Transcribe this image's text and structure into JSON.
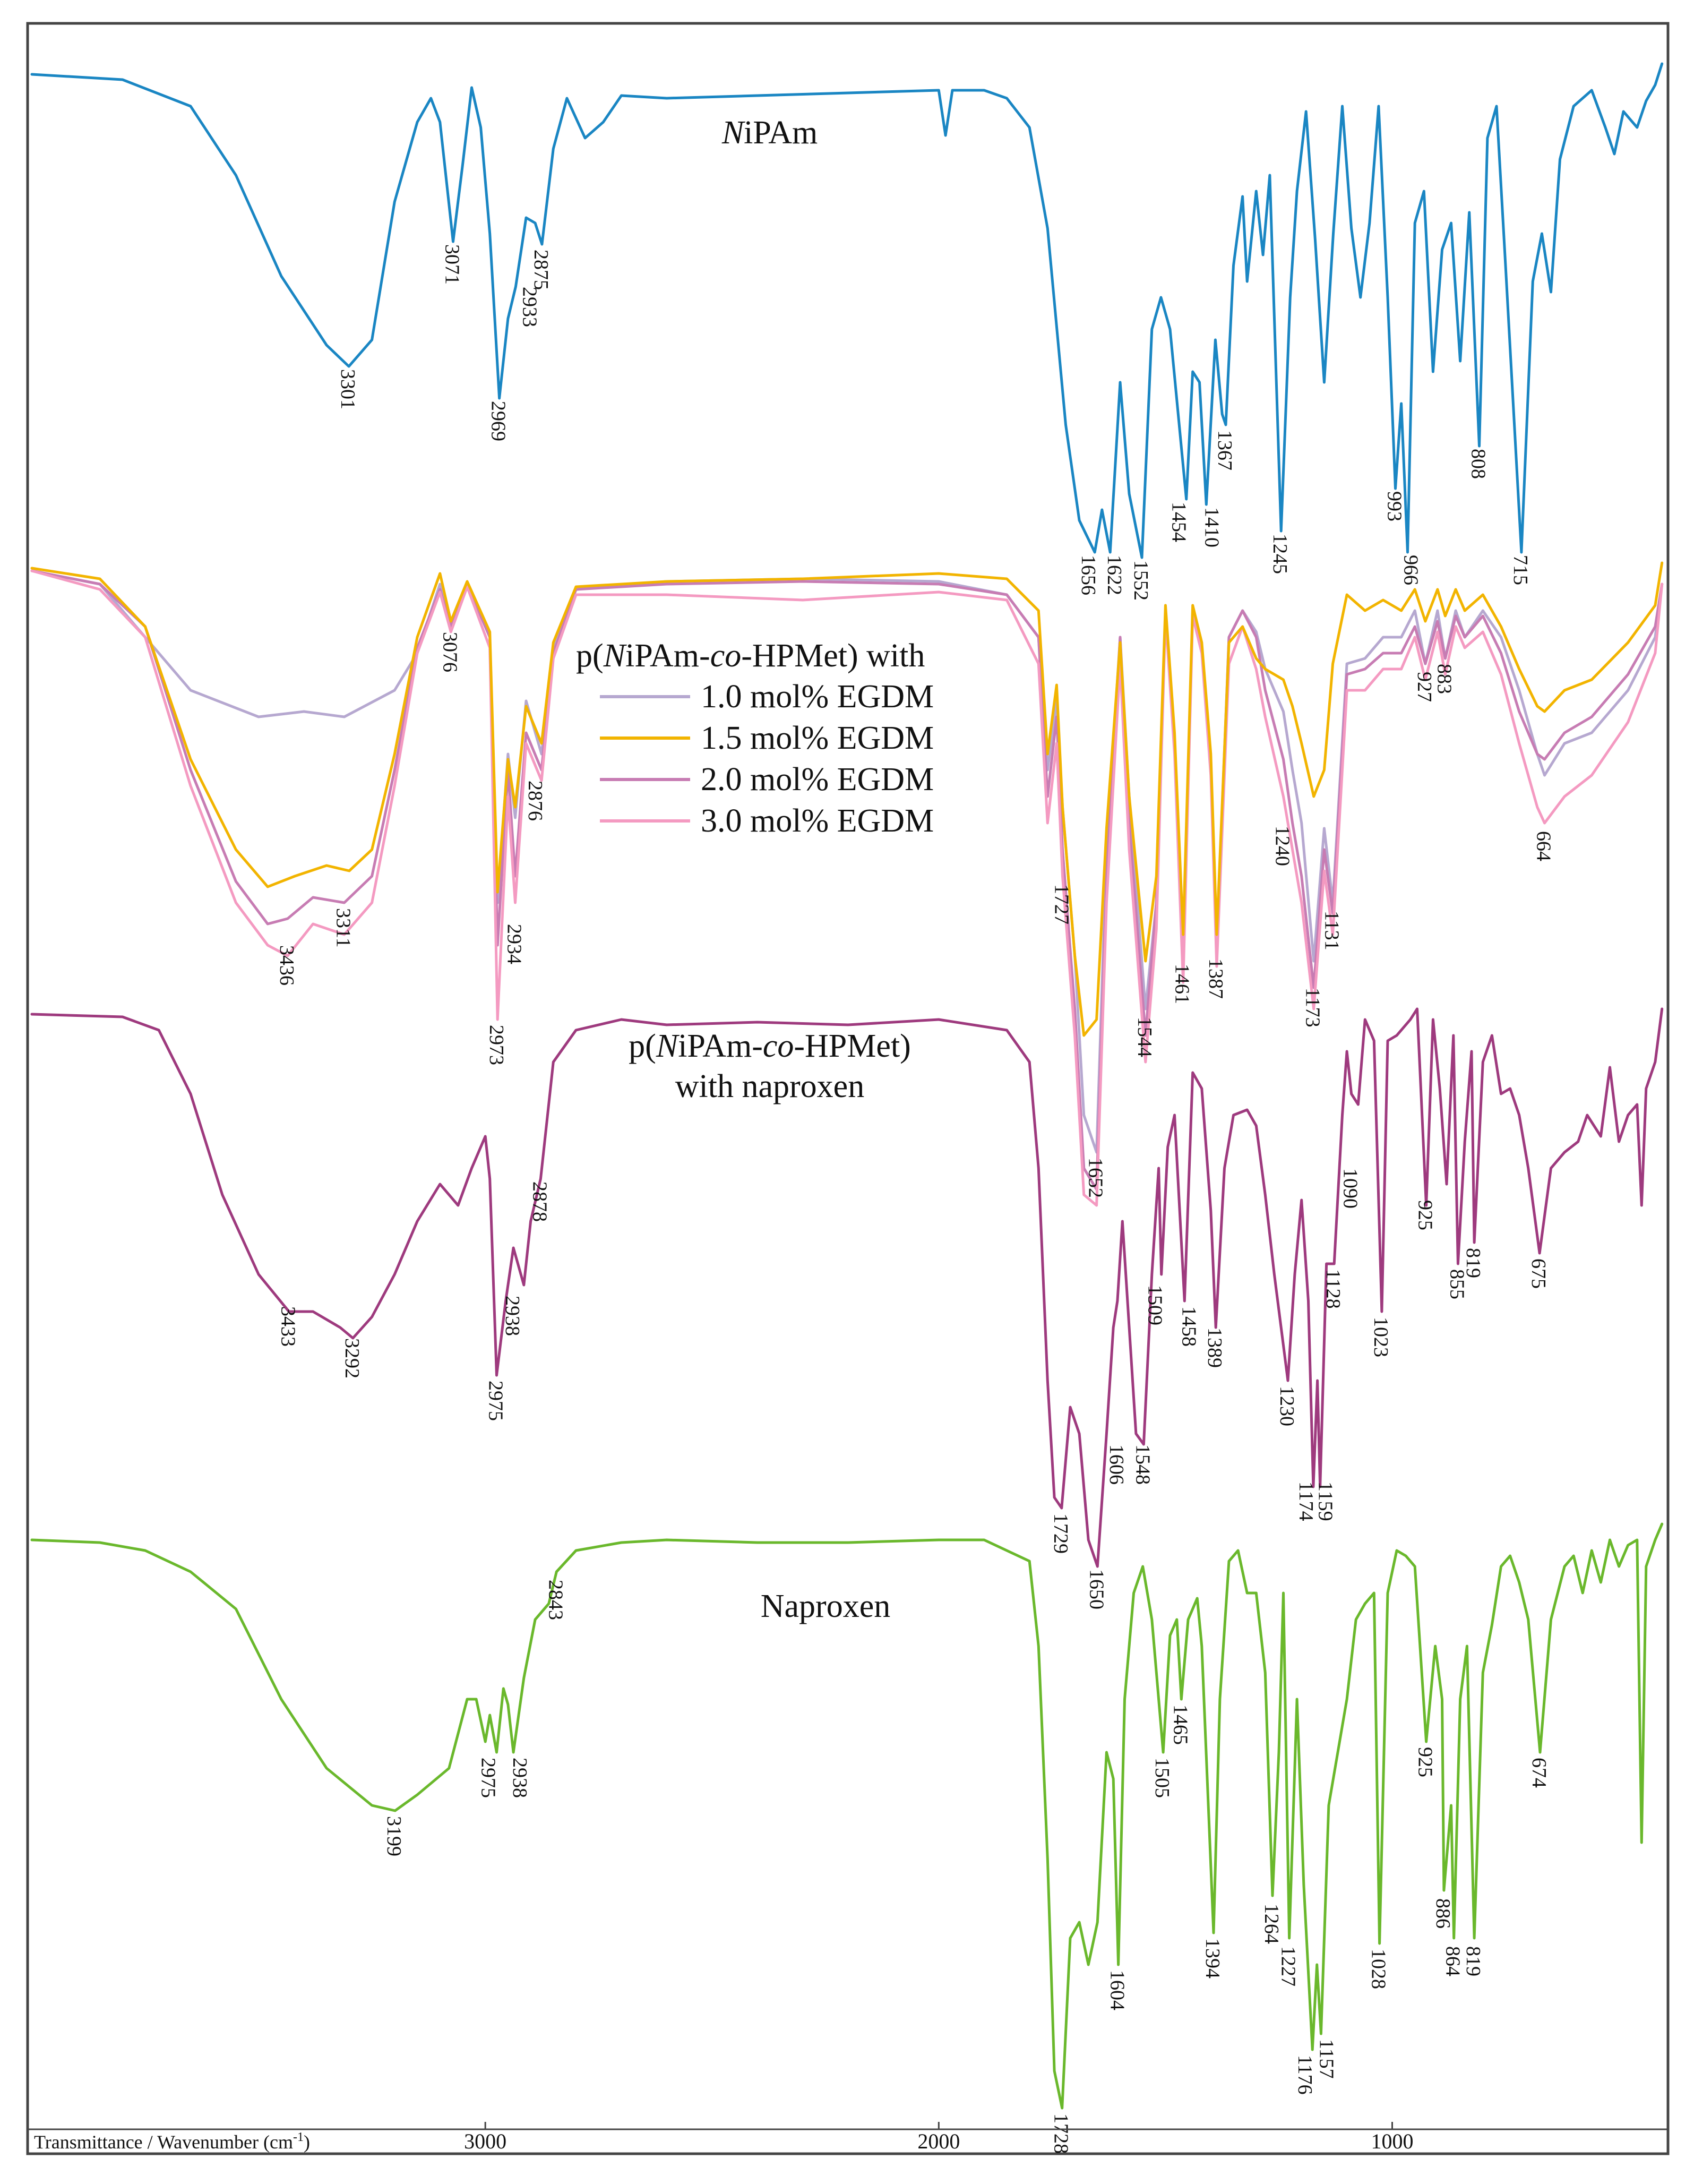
{
  "chart_data": {
    "type": "line",
    "title": "",
    "xlabel": "Transmittance / Wavenumber (cm",
    "xlabel_sup": "-1",
    "ylabel": "",
    "xlim": [
      4000,
      400
    ],
    "x_ticks": [
      3000,
      2000,
      1000
    ],
    "x_tick_labels": [
      "3000",
      "2000",
      "1000"
    ],
    "grid": false,
    "panels": [
      {
        "name": "NiPAm",
        "label_parts": [
          {
            "text": "N",
            "italic": true
          },
          {
            "text": "iPAm",
            "italic": false
          }
        ],
        "color": "#1a86c3",
        "peaks": [
          "3301",
          "3071",
          "2969",
          "2933",
          "2875",
          "1656",
          "1622",
          "1552",
          "1454",
          "1410",
          "1367",
          "1245",
          "993",
          "966",
          "808",
          "715"
        ]
      },
      {
        "name": "p(NiPAm-co-HPMet) with EGDM",
        "label_parts": [
          {
            "text": "p(",
            "italic": false
          },
          {
            "text": "N",
            "italic": true
          },
          {
            "text": "iPAm-",
            "italic": false
          },
          {
            "text": "co",
            "italic": true
          },
          {
            "text": "-HPMet) with",
            "italic": false
          }
        ],
        "legend": [
          {
            "label": "1.0 mol% EGDM",
            "color": "#b6a8d0"
          },
          {
            "label": "1.5 mol% EGDM",
            "color": "#f2b400"
          },
          {
            "label": "2.0 mol% EGDM",
            "color": "#c77cb3"
          },
          {
            "label": "3.0 mol% EGDM",
            "color": "#f49ac1"
          }
        ],
        "peaks": [
          "3436",
          "3311",
          "3076",
          "2973",
          "2934",
          "2876",
          "1727",
          "1652",
          "1544",
          "1461",
          "1387",
          "1240",
          "1173",
          "1131",
          "927",
          "883",
          "664"
        ]
      },
      {
        "name": "p(NiPAm-co-HPMet) with naproxen",
        "label_parts": [
          {
            "text": "p(",
            "italic": false
          },
          {
            "text": "N",
            "italic": true
          },
          {
            "text": "iPAm-",
            "italic": false
          },
          {
            "text": "co",
            "italic": true
          },
          {
            "text": "-HPMet)",
            "italic": false
          }
        ],
        "label_line2": "with naproxen",
        "color": "#9e3a7e",
        "peaks": [
          "3433",
          "3292",
          "2975",
          "2938",
          "2878",
          "1729",
          "1650",
          "1606",
          "1548",
          "1509",
          "1458",
          "1389",
          "1230",
          "1174",
          "1159",
          "1128",
          "1090",
          "1023",
          "925",
          "855",
          "819",
          "675"
        ]
      },
      {
        "name": "Naproxen",
        "label_parts": [
          {
            "text": "Naproxen",
            "italic": false
          }
        ],
        "color": "#6ab82c",
        "peaks": [
          "3199",
          "2975",
          "2938",
          "2843",
          "1728",
          "1604",
          "1505",
          "1465",
          "1394",
          "1264",
          "1227",
          "1176",
          "1157",
          "1028",
          "925",
          "886",
          "864",
          "819",
          "674"
        ]
      }
    ]
  }
}
